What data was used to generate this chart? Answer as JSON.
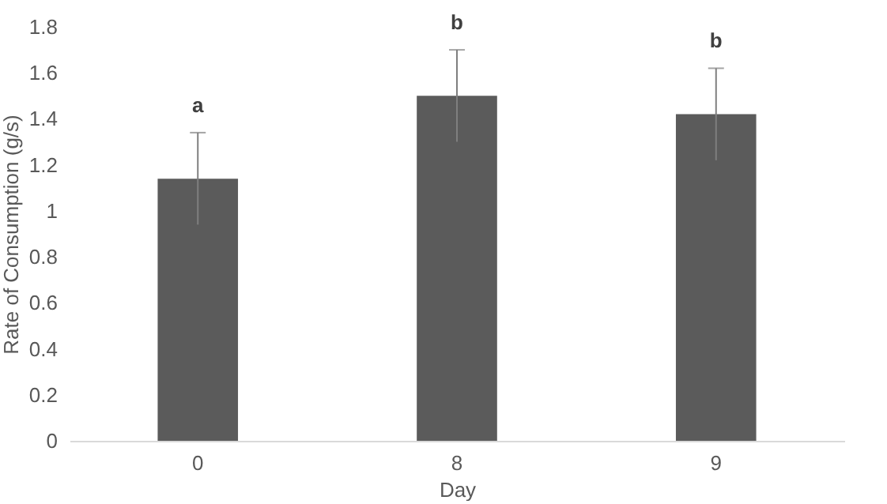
{
  "chart_data": {
    "type": "bar",
    "xlabel": "Day",
    "ylabel": "Rate of Consumption (g/s)",
    "categories": [
      "0",
      "8",
      "9"
    ],
    "values": [
      1.14,
      1.5,
      1.42
    ],
    "errors": [
      0.2,
      0.2,
      0.2
    ],
    "color": "#5b5b5b",
    "ylim": [
      0,
      1.8
    ],
    "yticks": [
      0,
      0.2,
      0.4,
      0.6,
      0.8,
      1,
      1.2,
      1.4,
      1.6,
      1.8
    ],
    "grid": false,
    "annotations": [
      "a",
      "b",
      "b"
    ]
  }
}
